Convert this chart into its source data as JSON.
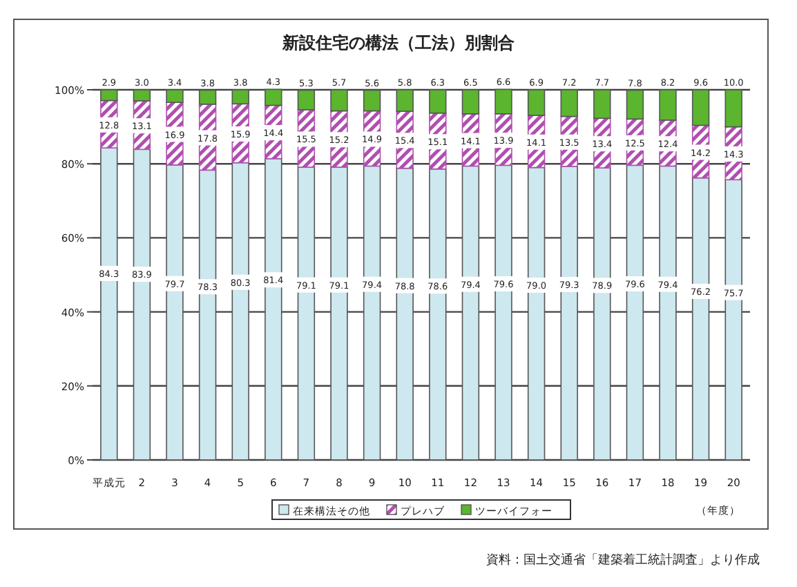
{
  "chart_data": {
    "type": "bar",
    "stacked": true,
    "title": "新設住宅の構法（工法）別割合",
    "xlabel": "（年度）",
    "categories": [
      "平成元",
      "2",
      "3",
      "4",
      "5",
      "6",
      "7",
      "8",
      "9",
      "10",
      "11",
      "12",
      "13",
      "14",
      "15",
      "16",
      "17",
      "18",
      "19",
      "20"
    ],
    "series": [
      {
        "name": "在来構法その他",
        "color": "#cde8ee",
        "values": [
          84.3,
          83.9,
          79.7,
          78.3,
          80.3,
          81.4,
          79.1,
          79.1,
          79.4,
          78.8,
          78.6,
          79.4,
          79.6,
          79.0,
          79.3,
          78.9,
          79.6,
          79.4,
          76.2,
          75.7
        ],
        "value_labels": [
          "84.3",
          "83.9",
          "79.7",
          "78.3",
          "80.3",
          "81.4",
          "79.1",
          "79.1",
          "79.4",
          "78.8",
          "78.6",
          "79.4",
          "79.6",
          "79.0",
          "79.3",
          "78.9",
          "79.6",
          "79.4",
          "76.2",
          "75.7"
        ]
      },
      {
        "name": "プレハブ",
        "color": "#b04fb0",
        "values": [
          12.8,
          13.1,
          16.9,
          17.8,
          15.9,
          14.4,
          15.5,
          15.2,
          14.9,
          15.4,
          15.1,
          14.1,
          13.9,
          14.1,
          13.5,
          13.4,
          12.5,
          12.4,
          14.2,
          14.3
        ],
        "value_labels": [
          "12.8",
          "13.1",
          "16.9",
          "17.8",
          "15.9",
          "14.4",
          "15.5",
          "15.2",
          "14.9",
          "15.4",
          "15.1",
          "14.1",
          "13.9",
          "14.1",
          "13.5",
          "13.4",
          "12.5",
          "12.4",
          "14.2",
          "14.3"
        ]
      },
      {
        "name": "ツーバイフォー",
        "color": "#5bb52e",
        "values": [
          2.9,
          3.0,
          3.4,
          3.8,
          3.8,
          4.3,
          5.3,
          5.7,
          5.6,
          5.8,
          6.3,
          6.5,
          6.6,
          6.9,
          7.2,
          7.7,
          7.8,
          8.2,
          9.6,
          10.0
        ],
        "value_labels": [
          "2.9",
          "3.0",
          "3.4",
          "3.8",
          "3.8",
          "4.3",
          "5.3",
          "5.7",
          "5.6",
          "5.8",
          "6.3",
          "6.5",
          "6.6",
          "6.9",
          "7.2",
          "7.7",
          "7.8",
          "8.2",
          "9.6",
          "10.0"
        ]
      }
    ],
    "ylim": [
      0,
      100
    ],
    "yticks": [
      {
        "value": 0,
        "label": "0%"
      },
      {
        "value": 20,
        "label": "20%"
      },
      {
        "value": 40,
        "label": "40%"
      },
      {
        "value": 60,
        "label": "60%"
      },
      {
        "value": 80,
        "label": "80%"
      },
      {
        "value": 100,
        "label": "100%"
      }
    ],
    "grid": "y",
    "legend": "bottom",
    "annotations": [
      "資料：国土交通省「建築着工統計調査」より作成"
    ]
  }
}
